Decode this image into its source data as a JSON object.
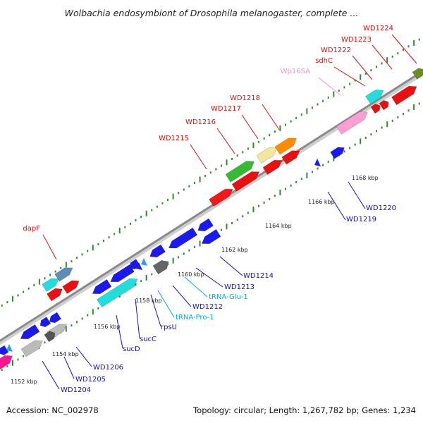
{
  "title": "Wolbachia endosymbiont of Drosophila melanogaster, complete ...",
  "footer": {
    "accession": "Accession: NC_002978",
    "summary": "Topology: circular; Length: 1,267,782 bp; Genes: 1,234"
  },
  "colors": {
    "backbone": "#8a8a8a",
    "tick_dot": "#2e8b2e",
    "label_red": "#e01010",
    "label_blue": "#1010cc",
    "label_cyan": "#00aee0",
    "label_pink": "#ff8ccf"
  },
  "scale_ticks": [
    "1152 kbp",
    "1154 kbp",
    "1156 kbp",
    "1158 kbp",
    "1160 kbp",
    "1162 kbp",
    "1164 kbp",
    "1166 kbp",
    "1168 kbp"
  ],
  "top_labels": [
    {
      "text": "WD1224",
      "color": "red"
    },
    {
      "text": "WD1223",
      "color": "red"
    },
    {
      "text": "WD1222",
      "color": "red"
    },
    {
      "text": "sdhC",
      "color": "red"
    },
    {
      "text": "Wp16SA",
      "color": "pink"
    },
    {
      "text": "WD1218",
      "color": "red"
    },
    {
      "text": "WD1217",
      "color": "red"
    },
    {
      "text": "WD1216",
      "color": "red"
    },
    {
      "text": "WD1215",
      "color": "red"
    },
    {
      "text": "dapF",
      "color": "red"
    }
  ],
  "bottom_labels": [
    {
      "text": "WD1220",
      "color": "blue"
    },
    {
      "text": "WD1219",
      "color": "blue"
    },
    {
      "text": "WD1214",
      "color": "blue"
    },
    {
      "text": "WD1213",
      "color": "blue"
    },
    {
      "text": "tRNA-Glu-1",
      "color": "cyan"
    },
    {
      "text": "WD1212",
      "color": "blue"
    },
    {
      "text": "tRNA-Pro-1",
      "color": "cyan"
    },
    {
      "text": "rpsU",
      "color": "blue"
    },
    {
      "text": "sucC",
      "color": "blue"
    },
    {
      "text": "sucD",
      "color": "blue"
    },
    {
      "text": "WD1206",
      "color": "blue"
    },
    {
      "text": "WD1205",
      "color": "blue"
    },
    {
      "text": "WD1204",
      "color": "blue"
    }
  ]
}
